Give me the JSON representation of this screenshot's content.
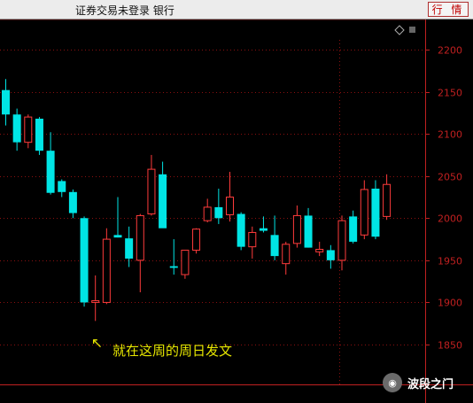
{
  "header": {
    "status_text": "证券交易未登录  银行",
    "quote_button_label": "行 情"
  },
  "chart_data": {
    "type": "candlestick",
    "y_ticks": [
      1850,
      1900,
      1950,
      2000,
      2050,
      2100,
      2150,
      2200
    ],
    "ylim": [
      1820,
      2230
    ],
    "grid": true,
    "colors": {
      "up": "#ff3b3b",
      "down": "#00e5e5",
      "grid": "#8a1010",
      "axis": "#c02020"
    },
    "candles": [
      {
        "open": 2152,
        "high": 2165,
        "low": 2110,
        "close": 2123
      },
      {
        "open": 2123,
        "high": 2130,
        "low": 2080,
        "close": 2090
      },
      {
        "open": 2090,
        "high": 2123,
        "low": 2083,
        "close": 2120
      },
      {
        "open": 2118,
        "high": 2120,
        "low": 2075,
        "close": 2080
      },
      {
        "open": 2080,
        "high": 2102,
        "low": 2028,
        "close": 2030
      },
      {
        "open": 2044,
        "high": 2046,
        "low": 2025,
        "close": 2031
      },
      {
        "open": 2031,
        "high": 2034,
        "low": 2000,
        "close": 2006
      },
      {
        "open": 2000,
        "high": 2002,
        "low": 1895,
        "close": 1900
      },
      {
        "open": 1900,
        "high": 1932,
        "low": 1878,
        "close": 1902
      },
      {
        "open": 1900,
        "high": 1988,
        "low": 1898,
        "close": 1975
      },
      {
        "open": 1980,
        "high": 2025,
        "low": 1977,
        "close": 1977
      },
      {
        "open": 1976,
        "high": 1990,
        "low": 1942,
        "close": 1952
      },
      {
        "open": 1950,
        "high": 2005,
        "low": 1912,
        "close": 2003
      },
      {
        "open": 2005,
        "high": 2075,
        "low": 2003,
        "close": 2058
      },
      {
        "open": 2052,
        "high": 2067,
        "low": 1990,
        "close": 1988
      },
      {
        "open": 1943,
        "high": 1975,
        "low": 1933,
        "close": 1941
      },
      {
        "open": 1933,
        "high": 1962,
        "low": 1928,
        "close": 1962
      },
      {
        "open": 1962,
        "high": 1988,
        "low": 1958,
        "close": 1987
      },
      {
        "open": 1997,
        "high": 2023,
        "low": 1995,
        "close": 2013
      },
      {
        "open": 2013,
        "high": 2035,
        "low": 1993,
        "close": 2000
      },
      {
        "open": 2004,
        "high": 2055,
        "low": 1996,
        "close": 2025
      },
      {
        "open": 2005,
        "high": 2007,
        "low": 1962,
        "close": 1966
      },
      {
        "open": 1966,
        "high": 1990,
        "low": 1952,
        "close": 1983
      },
      {
        "open": 1988,
        "high": 2002,
        "low": 1983,
        "close": 1985
      },
      {
        "open": 1980,
        "high": 2003,
        "low": 1950,
        "close": 1955
      },
      {
        "open": 1946,
        "high": 1972,
        "low": 1933,
        "close": 1969
      },
      {
        "open": 1970,
        "high": 2015,
        "low": 1965,
        "close": 2003
      },
      {
        "open": 2003,
        "high": 2012,
        "low": 1965,
        "close": 1965
      },
      {
        "open": 1960,
        "high": 1972,
        "low": 1955,
        "close": 1963
      },
      {
        "open": 1962,
        "high": 1968,
        "low": 1940,
        "close": 1950
      },
      {
        "open": 1950,
        "high": 2003,
        "low": 1938,
        "close": 1997
      },
      {
        "open": 2002,
        "high": 2009,
        "low": 1970,
        "close": 1972
      },
      {
        "open": 1980,
        "high": 2045,
        "low": 1975,
        "close": 2034
      },
      {
        "open": 2035,
        "high": 2045,
        "low": 1975,
        "close": 1978
      },
      {
        "open": 2002,
        "high": 2052,
        "low": 1998,
        "close": 2040
      }
    ]
  },
  "annotation": {
    "arrow_glyph": "↖",
    "text": "就在这周的周日发文",
    "candle_index": 8
  },
  "watermark": {
    "text": "波段之门"
  }
}
